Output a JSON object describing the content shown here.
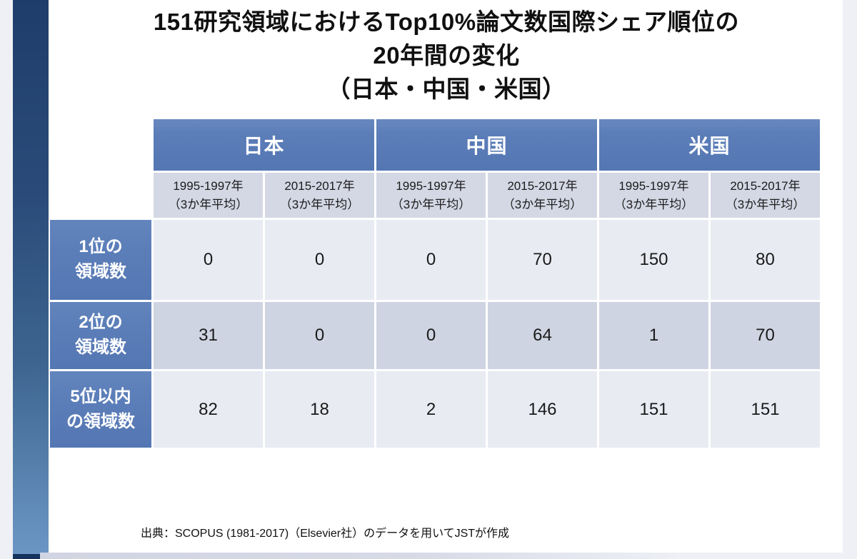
{
  "slide": {
    "title_lines": [
      "151研究領域におけるTop10%論文数国際シェア順位の",
      "20年間の変化",
      "（日本・中国・米国）"
    ],
    "source_note": "出典：SCOPUS (1981-2017)（Elsevier社）のデータを用いてJSTが作成"
  },
  "table": {
    "country_headers": [
      "日本",
      "中国",
      "米国"
    ],
    "period_headers": [
      {
        "period": "1995-1997年",
        "note": "（3か年平均）"
      },
      {
        "period": "2015-2017年",
        "note": "（3か年平均）"
      },
      {
        "period": "1995-1997年",
        "note": "（3か年平均）"
      },
      {
        "period": "2015-2017年",
        "note": "（3か年平均）"
      },
      {
        "period": "1995-1997年",
        "note": "（3か年平均）"
      },
      {
        "period": "2015-2017年",
        "note": "（3か年平均）"
      }
    ],
    "rows": [
      {
        "label_line1": "1位の",
        "label_line2": "領域数",
        "values": [
          "0",
          "0",
          "0",
          "70",
          "150",
          "80"
        ]
      },
      {
        "label_line1": "2位の",
        "label_line2": "領域数",
        "values": [
          "31",
          "0",
          "0",
          "64",
          "1",
          "70"
        ]
      },
      {
        "label_line1": "5位以内",
        "label_line2": "の領域数",
        "values": [
          "82",
          "18",
          "2",
          "146",
          "151",
          "151"
        ]
      }
    ]
  },
  "colors": {
    "header_blue": "#5b7db8",
    "subheader_bg": "#d4d8e5",
    "row_light_bg": "#e9ebf3",
    "row_dark_bg": "#cfd4e2",
    "accent_bar_top": "#1f3d6b",
    "accent_bar_bottom": "#6b96c4",
    "accent_bar_cap": "#16335e",
    "page_gutter": "#eef0f6"
  },
  "chart_data": {
    "type": "table",
    "title": "151研究領域におけるTop10%論文数国際シェア順位の20年間の変化（日本・中国・米国）",
    "column_groups": [
      "日本",
      "中国",
      "米国"
    ],
    "columns": [
      "日本 1995-1997年（3か年平均）",
      "日本 2015-2017年（3か年平均）",
      "中国 1995-1997年（3か年平均）",
      "中国 2015-2017年（3か年平均）",
      "米国 1995-1997年（3か年平均）",
      "米国 2015-2017年（3か年平均）"
    ],
    "rows": [
      {
        "label": "1位の領域数",
        "values": [
          0,
          0,
          0,
          70,
          150,
          80
        ]
      },
      {
        "label": "2位の領域数",
        "values": [
          31,
          0,
          0,
          64,
          1,
          70
        ]
      },
      {
        "label": "5位以内の領域数",
        "values": [
          82,
          18,
          2,
          146,
          151,
          151
        ]
      }
    ],
    "source": "出典：SCOPUS (1981-2017)（Elsevier社）のデータを用いてJSTが作成"
  }
}
